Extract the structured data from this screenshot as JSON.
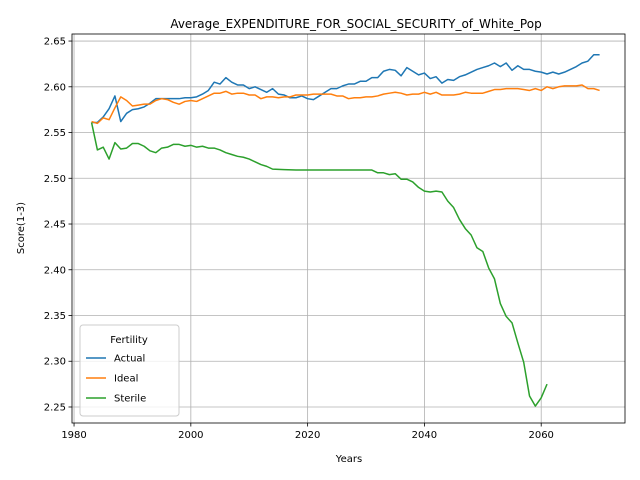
{
  "chart_data": {
    "type": "line",
    "title": "Average_EXPENDITURE_FOR_SOCIAL_SECURITY_of_White_Pop",
    "xlabel": "Years",
    "ylabel": "Score(1-3)",
    "xlim": [
      1979.65,
      2074.35
    ],
    "ylim": [
      2.2325,
      2.6577
    ],
    "xticks": [
      1980,
      2000,
      2020,
      2040,
      2060
    ],
    "yticks": [
      2.25,
      2.3,
      2.35,
      2.4,
      2.45,
      2.5,
      2.55,
      2.6,
      2.65
    ],
    "xtick_labels": [
      "1980",
      "2000",
      "2020",
      "2040",
      "2060"
    ],
    "ytick_labels": [
      "2.25",
      "2.30",
      "2.35",
      "2.40",
      "2.45",
      "2.50",
      "2.55",
      "2.60",
      "2.65"
    ],
    "grid": true,
    "legend": {
      "title": "Fertility",
      "placement": "lower-left"
    },
    "series": [
      {
        "name": "Actual",
        "color": "#1f77b4",
        "x": [
          1983,
          1984,
          1985,
          1986,
          1987,
          1988,
          1989,
          1990,
          1991,
          1992,
          1993,
          1994,
          1995,
          1996,
          1997,
          1998,
          1999,
          2000,
          2001,
          2002,
          2003,
          2004,
          2005,
          2006,
          2007,
          2008,
          2009,
          2010,
          2011,
          2012,
          2013,
          2014,
          2015,
          2016,
          2017,
          2018,
          2019,
          2020,
          2021,
          2022,
          2023,
          2024,
          2025,
          2026,
          2027,
          2028,
          2029,
          2030,
          2031,
          2032,
          2033,
          2034,
          2035,
          2036,
          2037,
          2038,
          2039,
          2040,
          2041,
          2042,
          2043,
          2044,
          2045,
          2046,
          2047,
          2048,
          2049,
          2050,
          2051,
          2052,
          2053,
          2054,
          2055,
          2056,
          2057,
          2058,
          2059,
          2060,
          2061,
          2062,
          2063,
          2064,
          2065,
          2066,
          2067,
          2068,
          2069,
          2070
        ],
        "values": [
          2.561,
          2.561,
          2.567,
          2.576,
          2.59,
          2.562,
          2.571,
          2.575,
          2.576,
          2.578,
          2.582,
          2.587,
          2.587,
          2.587,
          2.587,
          2.587,
          2.588,
          2.588,
          2.589,
          2.592,
          2.596,
          2.605,
          2.603,
          2.61,
          2.605,
          2.602,
          2.602,
          2.598,
          2.6,
          2.597,
          2.594,
          2.598,
          2.592,
          2.591,
          2.588,
          2.588,
          2.59,
          2.587,
          2.586,
          2.59,
          2.594,
          2.598,
          2.598,
          2.601,
          2.603,
          2.603,
          2.606,
          2.606,
          2.61,
          2.61,
          2.617,
          2.619,
          2.618,
          2.612,
          2.621,
          2.617,
          2.613,
          2.615,
          2.609,
          2.611,
          2.604,
          2.608,
          2.607,
          2.611,
          2.613,
          2.616,
          2.619,
          2.621,
          2.623,
          2.626,
          2.622,
          2.626,
          2.618,
          2.623,
          2.619,
          2.619,
          2.617,
          2.616,
          2.614,
          2.616,
          2.614,
          2.616,
          2.619,
          2.622,
          2.626,
          2.628,
          2.635,
          2.635
        ]
      },
      {
        "name": "Ideal",
        "color": "#ff7f0e",
        "x": [
          1983,
          1984,
          1985,
          1986,
          1987,
          1988,
          1989,
          1990,
          1991,
          1992,
          1993,
          1994,
          1995,
          1996,
          1997,
          1998,
          1999,
          2000,
          2001,
          2002,
          2003,
          2004,
          2005,
          2006,
          2007,
          2008,
          2009,
          2010,
          2011,
          2012,
          2013,
          2014,
          2015,
          2016,
          2017,
          2018,
          2019,
          2020,
          2021,
          2022,
          2023,
          2024,
          2025,
          2026,
          2027,
          2028,
          2029,
          2030,
          2031,
          2032,
          2033,
          2034,
          2035,
          2036,
          2037,
          2038,
          2039,
          2040,
          2041,
          2042,
          2043,
          2044,
          2045,
          2046,
          2047,
          2048,
          2049,
          2050,
          2051,
          2052,
          2053,
          2054,
          2055,
          2056,
          2057,
          2058,
          2059,
          2060,
          2061,
          2062,
          2063,
          2064,
          2065,
          2066,
          2067,
          2068,
          2069,
          2070
        ],
        "values": [
          2.562,
          2.56,
          2.566,
          2.564,
          2.577,
          2.589,
          2.585,
          2.579,
          2.58,
          2.581,
          2.581,
          2.585,
          2.587,
          2.586,
          2.583,
          2.581,
          2.584,
          2.585,
          2.584,
          2.587,
          2.59,
          2.593,
          2.593,
          2.595,
          2.592,
          2.593,
          2.593,
          2.591,
          2.591,
          2.587,
          2.589,
          2.589,
          2.588,
          2.589,
          2.589,
          2.591,
          2.591,
          2.591,
          2.592,
          2.592,
          2.592,
          2.592,
          2.59,
          2.59,
          2.587,
          2.588,
          2.588,
          2.589,
          2.589,
          2.59,
          2.592,
          2.593,
          2.594,
          2.593,
          2.591,
          2.592,
          2.592,
          2.594,
          2.592,
          2.594,
          2.591,
          2.591,
          2.591,
          2.592,
          2.594,
          2.593,
          2.593,
          2.593,
          2.595,
          2.597,
          2.597,
          2.598,
          2.598,
          2.598,
          2.597,
          2.596,
          2.598,
          2.596,
          2.6,
          2.598,
          2.6,
          2.601,
          2.601,
          2.601,
          2.602,
          2.598,
          2.598,
          2.596
        ]
      },
      {
        "name": "Sterile",
        "color": "#2ca02c",
        "x": [
          1983,
          1984,
          1985,
          1986,
          1987,
          1988,
          1989,
          1990,
          1991,
          1992,
          1993,
          1994,
          1995,
          1996,
          1997,
          1998,
          1999,
          2000,
          2001,
          2002,
          2003,
          2004,
          2005,
          2006,
          2007,
          2008,
          2009,
          2010,
          2011,
          2012,
          2013,
          2014,
          2016,
          2018,
          2020,
          2022,
          2024,
          2026,
          2028,
          2030,
          2031,
          2032,
          2033,
          2034,
          2035,
          2036,
          2037,
          2038,
          2039,
          2040,
          2041,
          2042,
          2043,
          2044,
          2045,
          2046,
          2047,
          2048,
          2049,
          2050,
          2051,
          2052,
          2053,
          2054,
          2055,
          2056,
          2057,
          2058,
          2059,
          2060,
          2061
        ],
        "values": [
          2.561,
          2.531,
          2.534,
          2.521,
          2.539,
          2.532,
          2.533,
          2.538,
          2.538,
          2.535,
          2.53,
          2.528,
          2.533,
          2.534,
          2.537,
          2.537,
          2.535,
          2.536,
          2.534,
          2.535,
          2.533,
          2.533,
          2.531,
          2.528,
          2.526,
          2.524,
          2.523,
          2.521,
          2.518,
          2.515,
          2.513,
          2.51,
          2.5095,
          2.509,
          2.509,
          2.509,
          2.509,
          2.509,
          2.509,
          2.509,
          2.509,
          2.506,
          2.506,
          2.504,
          2.505,
          2.499,
          2.499,
          2.496,
          2.49,
          2.486,
          2.485,
          2.486,
          2.485,
          2.475,
          2.468,
          2.455,
          2.445,
          2.438,
          2.424,
          2.42,
          2.402,
          2.39,
          2.363,
          2.349,
          2.342,
          2.32,
          2.299,
          2.262,
          2.251,
          2.26,
          2.275
        ]
      }
    ]
  }
}
